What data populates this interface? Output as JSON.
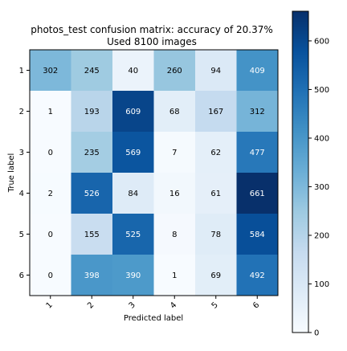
{
  "chart_data": {
    "type": "heatmap",
    "title_line1": "photos_test confusion matrix: accuracy of 20.37%",
    "title_line2": "Used 8100 images",
    "xlabel": "Predicted label",
    "ylabel": "True label",
    "x_categories": [
      "1",
      "2",
      "3",
      "4",
      "5",
      "6"
    ],
    "y_categories": [
      "1",
      "2",
      "3",
      "4",
      "5",
      "6"
    ],
    "values": [
      [
        302,
        245,
        40,
        260,
        94,
        409
      ],
      [
        1,
        193,
        609,
        68,
        167,
        312
      ],
      [
        0,
        235,
        569,
        7,
        62,
        477
      ],
      [
        2,
        526,
        84,
        16,
        61,
        661
      ],
      [
        0,
        155,
        525,
        8,
        78,
        584
      ],
      [
        0,
        398,
        390,
        1,
        69,
        492
      ]
    ],
    "colormap": "Blues",
    "color_range": [
      0,
      661
    ],
    "colorbar_ticks": [
      0,
      100,
      200,
      300,
      400,
      500,
      600
    ],
    "x_tick_rotation": "45deg"
  }
}
